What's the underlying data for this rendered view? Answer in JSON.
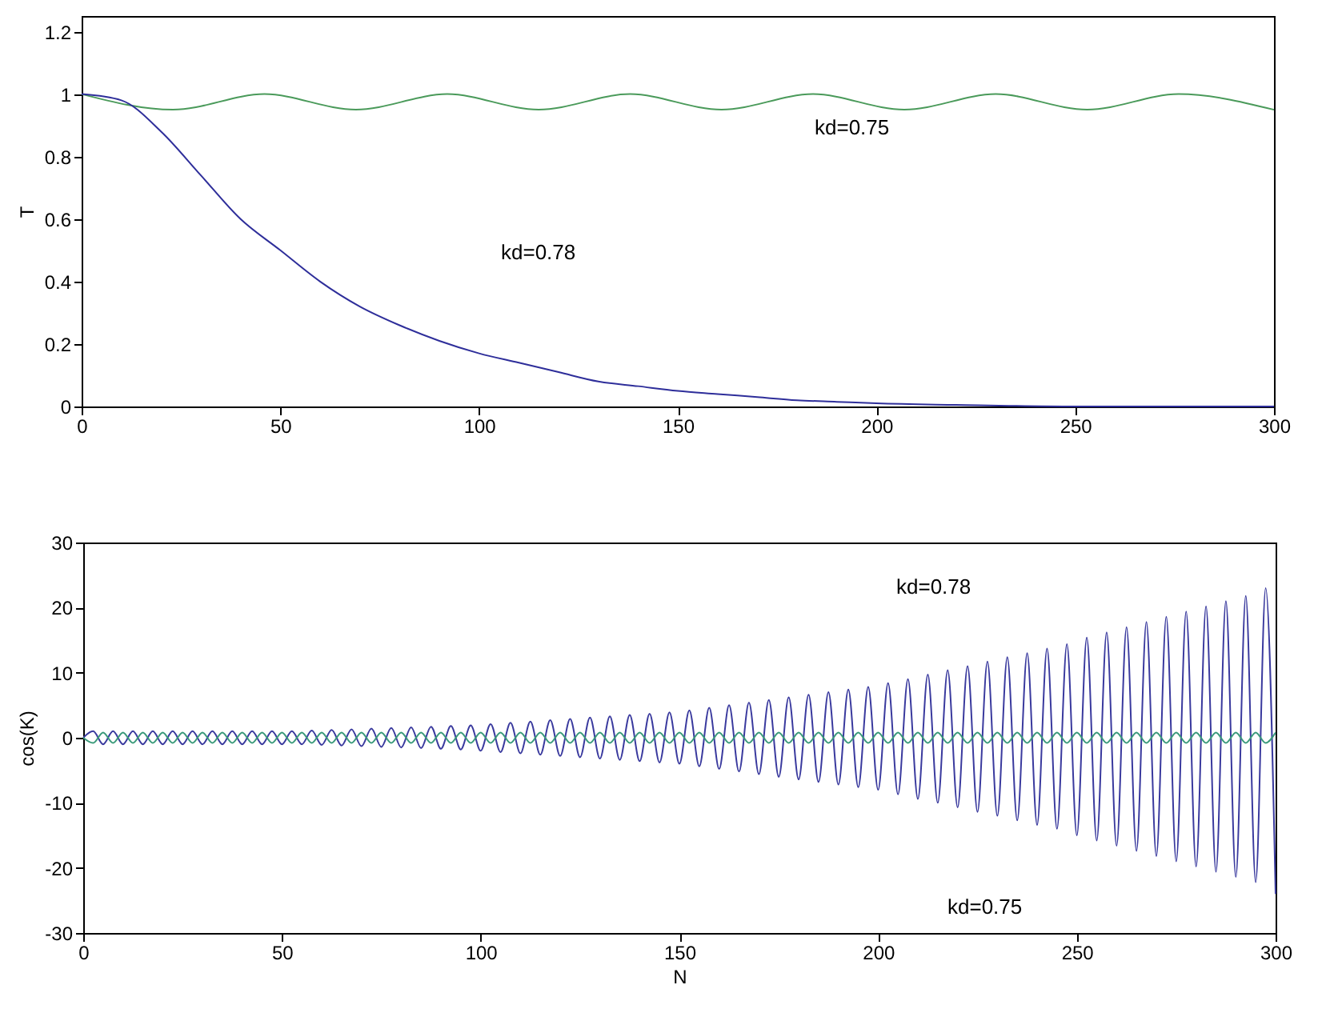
{
  "chart_data": [
    {
      "type": "line",
      "ylabel": "T",
      "xlim": [
        0,
        300
      ],
      "xticks": [
        0,
        50,
        100,
        150,
        200,
        250,
        300
      ],
      "ylim": [
        0,
        1.25
      ],
      "yticks": [
        0,
        0.2,
        0.4,
        0.6,
        0.8,
        1,
        1.2
      ],
      "series": [
        {
          "color": "#4a9a5a",
          "x": [
            0,
            23,
            46,
            69,
            92,
            115,
            138,
            161,
            184,
            207,
            230,
            253,
            276,
            300
          ],
          "values": [
            1,
            0.95,
            1,
            0.95,
            1,
            0.95,
            1,
            0.95,
            1,
            0.95,
            1,
            0.95,
            1,
            0.95
          ]
        },
        {
          "color": "#2e2e9a",
          "x": [
            0,
            10,
            20,
            30,
            40,
            50,
            60,
            70,
            80,
            90,
            100,
            110,
            120,
            130,
            140,
            150,
            160,
            170,
            180,
            190,
            200,
            220,
            250,
            300
          ],
          "values": [
            1,
            0.98,
            0.88,
            0.74,
            0.6,
            0.5,
            0.4,
            0.32,
            0.26,
            0.21,
            0.17,
            0.14,
            0.11,
            0.08,
            0.065,
            0.05,
            0.04,
            0.03,
            0.02,
            0.015,
            0.01,
            0.005,
            0,
            0
          ]
        }
      ],
      "annotations": [
        "kd=0.75",
        "kd=0.78"
      ]
    },
    {
      "type": "line",
      "xlabel": "N",
      "ylabel": "cos(K)",
      "xlim": [
        0,
        300
      ],
      "xticks": [
        0,
        50,
        100,
        150,
        200,
        250,
        300
      ],
      "ylim": [
        -30,
        30
      ],
      "yticks": [
        -30,
        -20,
        -10,
        0,
        10,
        20,
        30
      ],
      "x": [
        0,
        2.5,
        5,
        7.5,
        10,
        12.5,
        15,
        17.5,
        20,
        22.5,
        25,
        27.5,
        30,
        32.5,
        35,
        37.5,
        40,
        42.5,
        45,
        47.5,
        50,
        52.5,
        55,
        57.5,
        60,
        62.5,
        65,
        67.5,
        70,
        72.5,
        75,
        77.5,
        80,
        82.5,
        85,
        87.5,
        90,
        92.5,
        95,
        97.5,
        100,
        102.5,
        105,
        107.5,
        110,
        112.5,
        115,
        117.5,
        120,
        122.5,
        125,
        127.5,
        130,
        132.5,
        135,
        137.5,
        140,
        142.5,
        145,
        147.5,
        150,
        152.5,
        155,
        157.5,
        160,
        162.5,
        165,
        167.5,
        170,
        172.5,
        175,
        177.5,
        180,
        182.5,
        185,
        187.5,
        190,
        192.5,
        195,
        197.5,
        200,
        202.5,
        205,
        207.5,
        210,
        212.5,
        215,
        217.5,
        220,
        222.5,
        225,
        227.5,
        230,
        232.5,
        235,
        237.5,
        240,
        242.5,
        245,
        247.5,
        250,
        252.5,
        255,
        257.5,
        260,
        262.5,
        265,
        267.5,
        270,
        272.5,
        275,
        277.5,
        280,
        282.5,
        285,
        287.5,
        290,
        292.5,
        295,
        297.5,
        300
      ],
      "series": [
        {
          "color": "#3a3a9e",
          "values": [
            0,
            1,
            -1,
            1,
            -1,
            1,
            -1,
            1,
            -1,
            1,
            -1,
            1,
            -1,
            1,
            -1,
            1,
            -1,
            1,
            -1,
            1,
            -1,
            1,
            -1,
            1.1,
            -1.1,
            1.2,
            -1.2,
            1.3,
            -1.3,
            1.4,
            -1.4,
            1.5,
            -1.5,
            1.6,
            -1.6,
            1.7,
            -1.7,
            1.8,
            -1.8,
            1.9,
            -2,
            2.1,
            -2.2,
            2.3,
            -2.4,
            2.5,
            -2.6,
            2.7,
            -2.8,
            2.9,
            -3,
            3.1,
            -3.2,
            3.3,
            -3.4,
            3.5,
            -3.6,
            3.7,
            -3.8,
            3.9,
            -4,
            4.2,
            -4.4,
            4.6,
            -4.8,
            5,
            -5.2,
            5.4,
            -5.6,
            5.8,
            -6,
            6.2,
            -6.4,
            6.6,
            -6.8,
            7,
            -7.2,
            7.4,
            -7.6,
            7.8,
            -8,
            8.4,
            -8.7,
            9,
            -9.4,
            9.7,
            -10,
            10.4,
            -10.7,
            11,
            -11.4,
            11.7,
            -12,
            12.4,
            -12.7,
            13,
            -13.4,
            13.7,
            -14,
            14.4,
            -15,
            15.4,
            -15.8,
            16.2,
            -16.6,
            17,
            -17.4,
            17.8,
            -18.2,
            18.6,
            -19,
            19.4,
            -19.8,
            20.2,
            -20.6,
            21,
            -21.4,
            21.8,
            -22.2,
            23,
            -24
          ]
        },
        {
          "color": "#3a9a7a",
          "values": [
            0,
            -0.8,
            0.8,
            -0.8,
            0.8,
            -0.8,
            0.8,
            -0.8,
            0.8,
            -0.8,
            0.8,
            -0.8,
            0.8,
            -0.8,
            0.8,
            -0.8,
            0.8,
            -0.8,
            0.8,
            -0.8,
            0.8,
            -0.8,
            0.8,
            -0.8,
            0.8,
            -0.8,
            0.8,
            -0.8,
            0.8,
            -0.8,
            0.8,
            -0.8,
            0.8,
            -0.8,
            0.8,
            -0.8,
            0.8,
            -0.8,
            0.8,
            -0.8,
            0.8,
            -0.8,
            0.8,
            -0.8,
            0.8,
            -0.8,
            0.8,
            -0.8,
            0.8,
            -0.8,
            0.8,
            -0.8,
            0.8,
            -0.8,
            0.8,
            -0.8,
            0.8,
            -0.8,
            0.8,
            -0.8,
            0.8,
            -0.8,
            0.8,
            -0.8,
            0.8,
            -0.8,
            0.8,
            -0.8,
            0.8,
            -0.8,
            0.8,
            -0.8,
            0.8,
            -0.8,
            0.8,
            -0.8,
            0.8,
            -0.8,
            0.8,
            -0.8,
            0.8,
            -0.8,
            0.8,
            -0.8,
            0.8,
            -0.8,
            0.8,
            -0.8,
            0.8,
            -0.8,
            0.8,
            -0.8,
            0.8,
            -0.8,
            0.8,
            -0.8,
            0.8,
            -0.8,
            0.8,
            -0.8,
            0.8,
            -0.8,
            0.8,
            -0.8,
            0.8,
            -0.8,
            0.8,
            -0.8,
            0.8,
            -0.8,
            0.8,
            -0.8,
            0.8,
            -0.8,
            0.8,
            -0.8,
            0.8,
            -0.8,
            0.8,
            -0.8,
            0.8
          ]
        }
      ],
      "annotations": [
        "kd=0.78",
        "kd=0.75"
      ]
    }
  ]
}
